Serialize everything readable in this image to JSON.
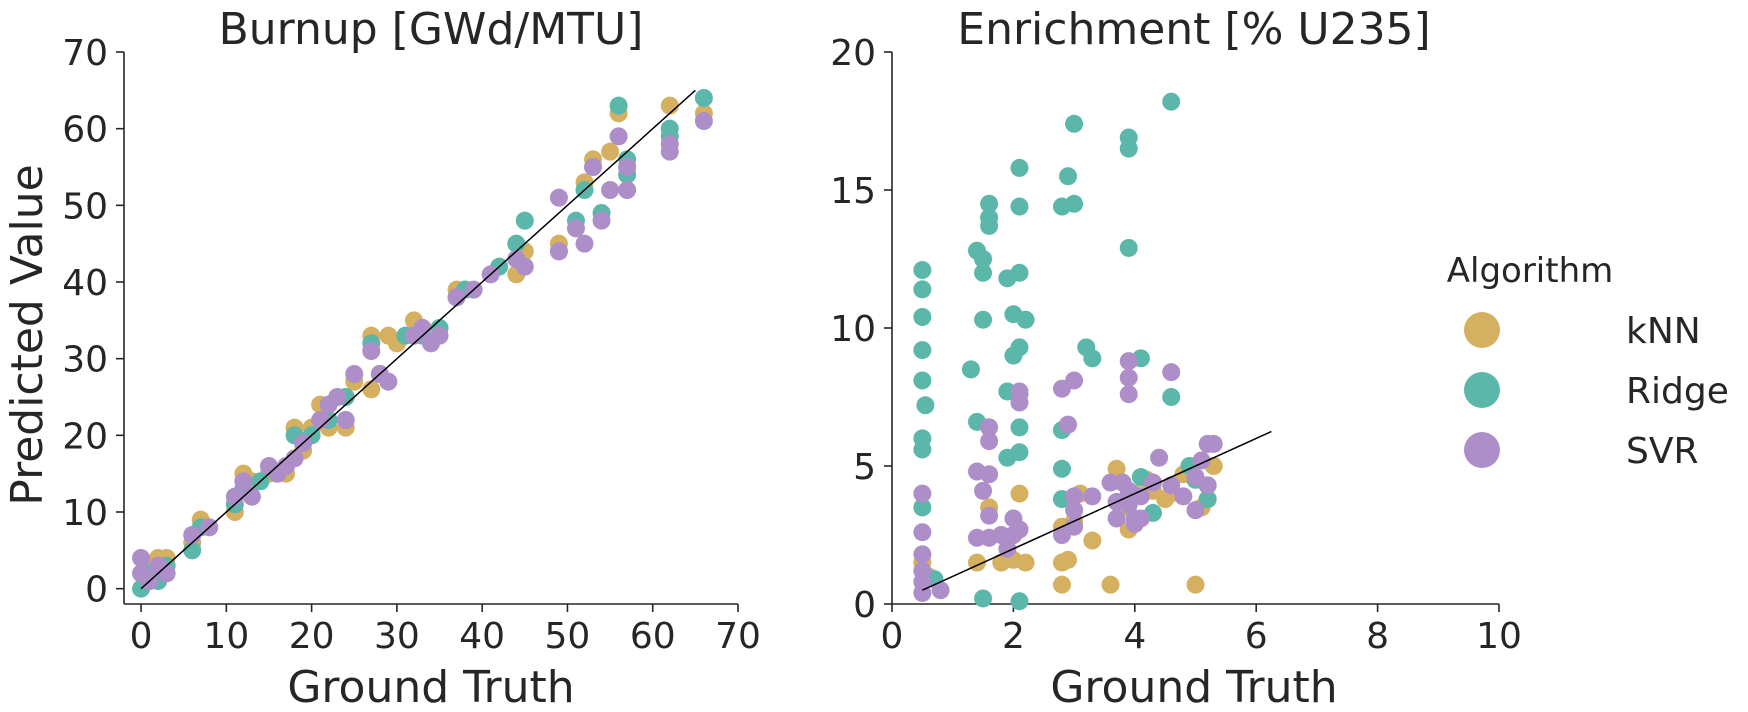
{
  "chart_data": [
    {
      "type": "scatter",
      "title": "Burnup [GWd/MTU]",
      "xlabel": "Ground Truth",
      "ylabel": "Predicted Value",
      "xlim": [
        -2,
        70
      ],
      "ylim": [
        -2,
        70
      ],
      "xticks": [
        "0",
        "10",
        "20",
        "30",
        "40",
        "50",
        "60",
        "70"
      ],
      "yticks": [
        "0",
        "10",
        "20",
        "30",
        "40",
        "50",
        "60",
        "70"
      ],
      "reference_line": [
        [
          0,
          0
        ],
        [
          65,
          65
        ]
      ],
      "series": [
        {
          "name": "kNN",
          "color": "#d5b060",
          "points": [
            [
              0,
              2
            ],
            [
              1,
              3
            ],
            [
              2,
              4
            ],
            [
              3,
              4
            ],
            [
              6,
              6
            ],
            [
              7,
              9
            ],
            [
              11,
              10
            ],
            [
              12,
              15
            ],
            [
              13,
              14
            ],
            [
              15,
              15
            ],
            [
              17,
              15
            ],
            [
              18,
              21
            ],
            [
              19,
              18
            ],
            [
              20,
              21
            ],
            [
              21,
              24
            ],
            [
              22,
              21
            ],
            [
              24,
              21
            ],
            [
              25,
              27
            ],
            [
              27,
              33
            ],
            [
              27,
              26
            ],
            [
              29,
              33
            ],
            [
              30,
              32
            ],
            [
              32,
              35
            ],
            [
              33,
              34
            ],
            [
              37,
              39
            ],
            [
              38,
              39
            ],
            [
              44,
              41
            ],
            [
              45,
              44
            ],
            [
              49,
              45
            ],
            [
              52,
              53
            ],
            [
              53,
              56
            ],
            [
              55,
              57
            ],
            [
              56,
              62
            ],
            [
              57,
              55
            ],
            [
              62,
              63
            ],
            [
              66,
              62
            ]
          ]
        },
        {
          "name": "Ridge",
          "color": "#5ab7aa",
          "points": [
            [
              0,
              0
            ],
            [
              1,
              2
            ],
            [
              2,
              1
            ],
            [
              3,
              3
            ],
            [
              6,
              5
            ],
            [
              7,
              8
            ],
            [
              11,
              11
            ],
            [
              12,
              13
            ],
            [
              14,
              14
            ],
            [
              16,
              15
            ],
            [
              18,
              20
            ],
            [
              19,
              19
            ],
            [
              20,
              20
            ],
            [
              22,
              22
            ],
            [
              24,
              25
            ],
            [
              27,
              32
            ],
            [
              28,
              28
            ],
            [
              31,
              33
            ],
            [
              33,
              33
            ],
            [
              35,
              34
            ],
            [
              37,
              38
            ],
            [
              38,
              39
            ],
            [
              42,
              42
            ],
            [
              44,
              45
            ],
            [
              45,
              48
            ],
            [
              49,
              44
            ],
            [
              51,
              48
            ],
            [
              52,
              52
            ],
            [
              54,
              49
            ],
            [
              56,
              63
            ],
            [
              57,
              54
            ],
            [
              57,
              56
            ],
            [
              62,
              60
            ],
            [
              62,
              59
            ],
            [
              66,
              64
            ]
          ]
        },
        {
          "name": "SVR",
          "color": "#ae8ec8",
          "points": [
            [
              0,
              4
            ],
            [
              0,
              2
            ],
            [
              1,
              1
            ],
            [
              2,
              3
            ],
            [
              3,
              2
            ],
            [
              6,
              7
            ],
            [
              8,
              8
            ],
            [
              11,
              12
            ],
            [
              12,
              14
            ],
            [
              13,
              12
            ],
            [
              15,
              16
            ],
            [
              16,
              15
            ],
            [
              17,
              16
            ],
            [
              18,
              17
            ],
            [
              19,
              19
            ],
            [
              21,
              22
            ],
            [
              22,
              24
            ],
            [
              23,
              25
            ],
            [
              24,
              22
            ],
            [
              25,
              28
            ],
            [
              27,
              31
            ],
            [
              28,
              28
            ],
            [
              29,
              27
            ],
            [
              32,
              33
            ],
            [
              33,
              34
            ],
            [
              34,
              32
            ],
            [
              35,
              33
            ],
            [
              37,
              38
            ],
            [
              39,
              39
            ],
            [
              41,
              41
            ],
            [
              44,
              43
            ],
            [
              45,
              42
            ],
            [
              49,
              51
            ],
            [
              49,
              44
            ],
            [
              51,
              47
            ],
            [
              52,
              45
            ],
            [
              53,
              55
            ],
            [
              54,
              48
            ],
            [
              55,
              52
            ],
            [
              56,
              59
            ],
            [
              57,
              52
            ],
            [
              57,
              55
            ],
            [
              62,
              57
            ],
            [
              62,
              58
            ],
            [
              66,
              61
            ]
          ]
        }
      ]
    },
    {
      "type": "scatter",
      "title": "Enrichment [% U235]",
      "xlabel": "Ground Truth",
      "ylabel": "",
      "xlim": [
        0,
        10
      ],
      "ylim": [
        0,
        20
      ],
      "xticks": [
        "0",
        "2",
        "4",
        "6",
        "8",
        "10"
      ],
      "yticks": [
        "0",
        "5",
        "10",
        "15",
        "20"
      ],
      "reference_line": [
        [
          0.5,
          0.5
        ],
        [
          6.25,
          6.25
        ]
      ],
      "series": [
        {
          "name": "kNN",
          "color": "#d5b060",
          "points": [
            [
              0.5,
              1.5
            ],
            [
              0.6,
              1.0
            ],
            [
              1.4,
              1.5
            ],
            [
              1.6,
              3.5
            ],
            [
              1.8,
              1.5
            ],
            [
              2.0,
              1.6
            ],
            [
              2.1,
              4.0
            ],
            [
              2.2,
              1.5
            ],
            [
              2.8,
              0.7
            ],
            [
              2.8,
              1.5
            ],
            [
              2.8,
              2.8
            ],
            [
              2.9,
              1.6
            ],
            [
              3.0,
              3.0
            ],
            [
              3.1,
              4.0
            ],
            [
              3.3,
              2.3
            ],
            [
              3.6,
              0.7
            ],
            [
              3.7,
              4.9
            ],
            [
              3.8,
              3.5
            ],
            [
              3.9,
              2.7
            ],
            [
              4.0,
              4.0
            ],
            [
              4.2,
              4.5
            ],
            [
              4.3,
              4.1
            ],
            [
              4.5,
              3.8
            ],
            [
              4.6,
              4.0
            ],
            [
              4.8,
              4.7
            ],
            [
              5.0,
              0.7
            ],
            [
              5.1,
              3.5
            ],
            [
              5.2,
              3.8
            ],
            [
              5.3,
              5.0
            ]
          ]
        },
        {
          "name": "Ridge",
          "color": "#5ab7aa",
          "points": [
            [
              0.5,
              12.1
            ],
            [
              0.5,
              11.4
            ],
            [
              0.5,
              10.4
            ],
            [
              0.5,
              9.2
            ],
            [
              0.5,
              8.1
            ],
            [
              0.55,
              7.2
            ],
            [
              0.5,
              6.0
            ],
            [
              0.5,
              5.6
            ],
            [
              0.5,
              3.5
            ],
            [
              0.7,
              0.9
            ],
            [
              1.3,
              8.5
            ],
            [
              1.4,
              12.8
            ],
            [
              1.4,
              6.6
            ],
            [
              1.5,
              12.5
            ],
            [
              1.5,
              12.0
            ],
            [
              1.5,
              10.3
            ],
            [
              1.6,
              14.5
            ],
            [
              1.6,
              14.0
            ],
            [
              1.6,
              13.7
            ],
            [
              1.5,
              0.2
            ],
            [
              1.9,
              11.8
            ],
            [
              1.9,
              7.7
            ],
            [
              1.9,
              5.3
            ],
            [
              2.0,
              10.5
            ],
            [
              2.0,
              9.0
            ],
            [
              2.1,
              15.8
            ],
            [
              2.1,
              14.4
            ],
            [
              2.1,
              12.0
            ],
            [
              2.1,
              9.3
            ],
            [
              2.1,
              7.6
            ],
            [
              2.1,
              6.4
            ],
            [
              2.1,
              5.5
            ],
            [
              2.1,
              0.1
            ],
            [
              2.2,
              10.3
            ],
            [
              2.8,
              14.4
            ],
            [
              2.8,
              6.3
            ],
            [
              2.8,
              4.9
            ],
            [
              2.8,
              3.8
            ],
            [
              2.9,
              15.5
            ],
            [
              3.0,
              17.4
            ],
            [
              3.0,
              14.5
            ],
            [
              3.2,
              9.3
            ],
            [
              3.3,
              8.9
            ],
            [
              3.9,
              16.9
            ],
            [
              3.9,
              16.5
            ],
            [
              3.9,
              12.9
            ],
            [
              4.1,
              8.9
            ],
            [
              4.1,
              4.6
            ],
            [
              4.3,
              3.3
            ],
            [
              4.6,
              18.2
            ],
            [
              4.6,
              7.5
            ],
            [
              4.9,
              5.0
            ],
            [
              5.0,
              4.5
            ],
            [
              5.2,
              4.3
            ],
            [
              5.2,
              3.8
            ]
          ]
        },
        {
          "name": "SVR",
          "color": "#ae8ec8",
          "points": [
            [
              0.5,
              4.0
            ],
            [
              0.5,
              2.6
            ],
            [
              0.5,
              1.8
            ],
            [
              0.5,
              1.2
            ],
            [
              0.5,
              0.8
            ],
            [
              0.5,
              0.4
            ],
            [
              0.8,
              0.5
            ],
            [
              1.4,
              4.8
            ],
            [
              1.4,
              2.4
            ],
            [
              1.5,
              4.1
            ],
            [
              1.6,
              6.4
            ],
            [
              1.6,
              5.9
            ],
            [
              1.6,
              4.7
            ],
            [
              1.6,
              3.2
            ],
            [
              1.6,
              2.4
            ],
            [
              1.8,
              2.5
            ],
            [
              1.9,
              2.0
            ],
            [
              2.0,
              3.1
            ],
            [
              2.0,
              2.5
            ],
            [
              2.1,
              7.7
            ],
            [
              2.1,
              7.3
            ],
            [
              2.1,
              2.7
            ],
            [
              2.8,
              7.8
            ],
            [
              2.8,
              2.5
            ],
            [
              2.9,
              6.5
            ],
            [
              3.0,
              8.1
            ],
            [
              3.0,
              3.9
            ],
            [
              3.0,
              3.4
            ],
            [
              3.0,
              2.8
            ],
            [
              3.3,
              3.9
            ],
            [
              3.6,
              4.4
            ],
            [
              3.7,
              3.7
            ],
            [
              3.7,
              3.1
            ],
            [
              3.8,
              4.4
            ],
            [
              3.9,
              8.8
            ],
            [
              3.9,
              8.2
            ],
            [
              3.9,
              7.6
            ],
            [
              3.9,
              4.1
            ],
            [
              3.9,
              3.6
            ],
            [
              4.0,
              3.1
            ],
            [
              4.0,
              2.9
            ],
            [
              4.1,
              3.9
            ],
            [
              4.1,
              3.1
            ],
            [
              4.3,
              4.4
            ],
            [
              4.4,
              5.3
            ],
            [
              4.6,
              8.4
            ],
            [
              4.6,
              4.3
            ],
            [
              4.8,
              3.9
            ],
            [
              5.0,
              4.6
            ],
            [
              5.0,
              3.4
            ],
            [
              5.1,
              5.2
            ],
            [
              5.2,
              5.8
            ],
            [
              5.3,
              5.8
            ],
            [
              5.2,
              4.3
            ]
          ]
        }
      ]
    }
  ],
  "legend": {
    "title": "Algorithm",
    "placement": "right",
    "items": [
      {
        "label": "kNN",
        "color": "#d5b060"
      },
      {
        "label": "Ridge",
        "color": "#5ab7aa"
      },
      {
        "label": "SVR",
        "color": "#ae8ec8"
      }
    ]
  }
}
